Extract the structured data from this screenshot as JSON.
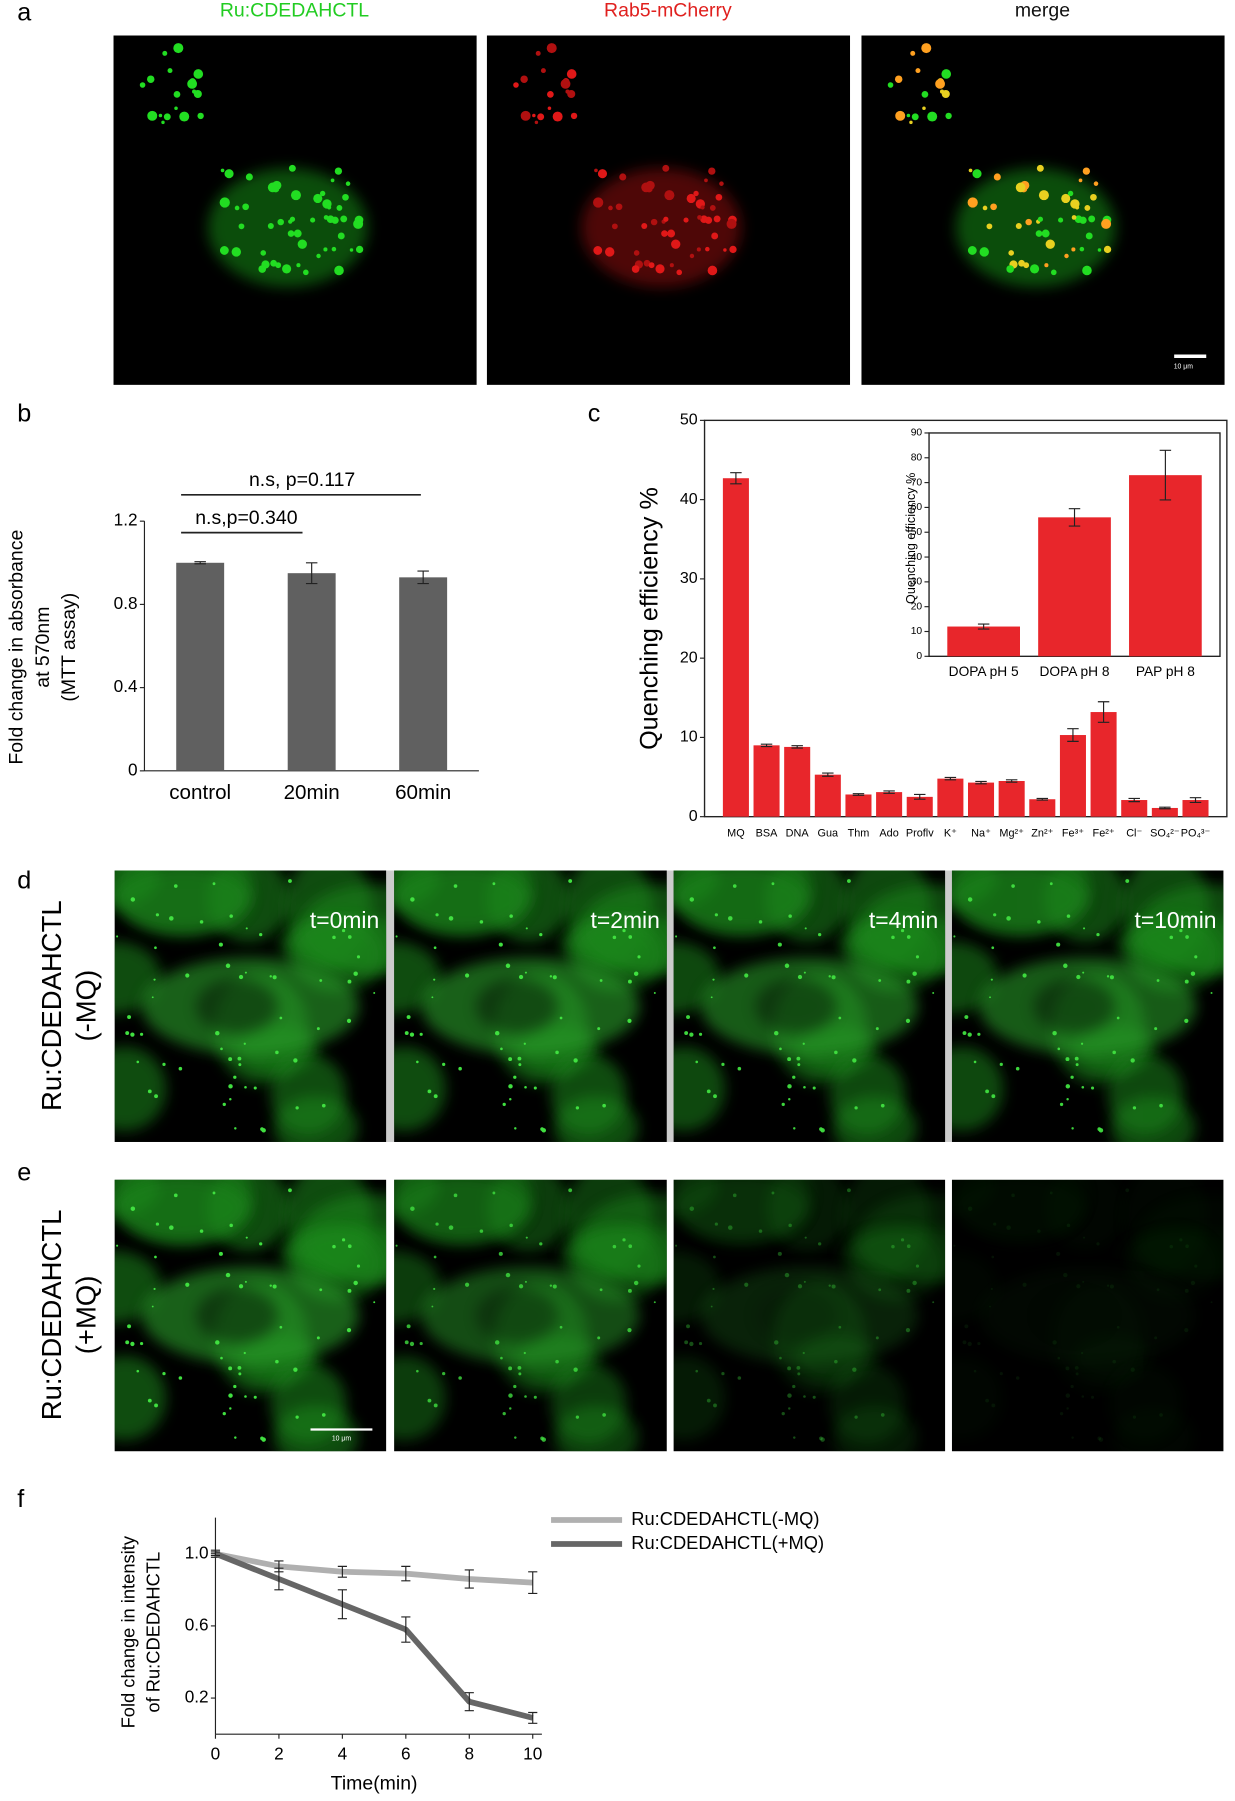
{
  "panel_labels": [
    "a",
    "b",
    "c",
    "d",
    "e",
    "f"
  ],
  "panel_a": {
    "titles": [
      "Ru:CDEDAHCTL",
      "Rab5-mCherry",
      "merge"
    ],
    "scale_bar": "10 μm"
  },
  "panel_d": {
    "row_label": [
      "Ru:CDEDAHCTL",
      "(-MQ)"
    ],
    "time_labels": [
      "t=0min",
      "t=2min",
      "t=4min",
      "t=10min"
    ]
  },
  "panel_e": {
    "row_label": [
      "Ru:CDEDAHCTL",
      "(+MQ)"
    ],
    "scale_bar": "10 μm"
  },
  "chart_data": [
    {
      "type": "bar",
      "ylabel": [
        "Fold change in absorbance",
        "at 570nm",
        "(MTT assay)"
      ],
      "categories": [
        "control",
        "20min",
        "60min"
      ],
      "values": [
        1.0,
        0.95,
        0.93
      ],
      "errors": [
        0.005,
        0.05,
        0.03
      ],
      "color": "#606060",
      "ylim": [
        0,
        1.2
      ],
      "yticks": [
        0,
        0.4,
        0.8,
        1.2
      ],
      "annotations": [
        "n.s,p=0.340",
        "n.s, p=0.117"
      ]
    },
    {
      "type": "bar",
      "ylabel": [
        "Quenching efficiency %"
      ],
      "categories": [
        "MQ",
        "BSA",
        "DNA",
        "Gua",
        "Thm",
        "Ado",
        "Proflv",
        "K⁺",
        "Na⁺",
        "Mg²⁺",
        "Zn²⁺",
        "Fe³⁺",
        "Fe²⁺",
        "Cl⁻",
        "SO₄²⁻",
        "PO₄³⁻"
      ],
      "values": [
        42.7,
        9.0,
        8.8,
        5.3,
        2.8,
        3.1,
        2.5,
        4.8,
        4.3,
        4.5,
        2.2,
        10.3,
        13.2,
        2.1,
        1.1,
        2.1
      ],
      "errors": [
        0.7,
        0.15,
        0.15,
        0.2,
        0.1,
        0.15,
        0.3,
        0.15,
        0.15,
        0.15,
        0.1,
        0.8,
        1.3,
        0.2,
        0.1,
        0.3
      ],
      "color": "#e8262b",
      "ylim": [
        0,
        50
      ],
      "yticks": [
        0,
        10,
        20,
        30,
        40,
        50
      ]
    },
    {
      "type": "bar",
      "ylabel": [
        "Quenching efficiency %"
      ],
      "categories": [
        "DOPA pH 5",
        "DOPA pH 8",
        "PAP pH 8"
      ],
      "values": [
        12,
        56,
        73
      ],
      "errors": [
        1,
        3.5,
        10
      ],
      "color": "#e8262b",
      "ylim": [
        0,
        90
      ],
      "yticks": [
        0,
        10,
        20,
        30,
        40,
        50,
        60,
        70,
        80,
        90
      ]
    },
    {
      "type": "line",
      "xlabel": "Time(min)",
      "ylabel": [
        "Fold change in intensity",
        "of Ru:CDEDAHCTL"
      ],
      "x": [
        0,
        2,
        4,
        6,
        8,
        10
      ],
      "xlim": [
        0,
        10
      ],
      "xticks": [
        0,
        2,
        4,
        6,
        8,
        10
      ],
      "ylim": [
        0,
        1.2
      ],
      "yticks": [
        0.2,
        0.6,
        {
          "value": 1,
          "label": "1.0"
        }
      ],
      "series": [
        {
          "name": "Ru:CDEDAHCTL(-MQ)",
          "color": "#b0b0b0",
          "values": [
            1.0,
            0.93,
            0.9,
            0.89,
            0.86,
            0.84
          ],
          "errors": [
            0.02,
            0.03,
            0.03,
            0.04,
            0.05,
            0.06
          ]
        },
        {
          "name": "Ru:CDEDAHCTL(+MQ)",
          "color": "#666666",
          "values": [
            1.0,
            0.86,
            0.72,
            0.58,
            0.18,
            0.09
          ],
          "errors": [
            0.01,
            0.06,
            0.08,
            0.07,
            0.05,
            0.03
          ]
        }
      ]
    }
  ]
}
